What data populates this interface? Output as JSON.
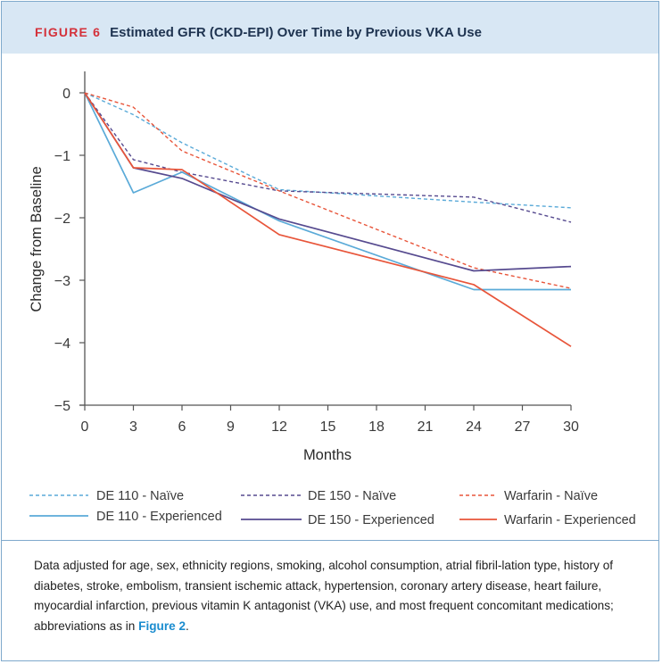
{
  "figure": {
    "label": "FIGURE 6",
    "title": "Estimated GFR (CKD-EPI) Over Time by Previous VKA Use"
  },
  "colors": {
    "de110": "#5aaad8",
    "de150": "#564a8f",
    "warfarin": "#e8553a",
    "frame": "#7fa9cc",
    "header_bg": "#d8e7f4",
    "figure_label": "#d4313a",
    "link": "#1a8ccf"
  },
  "chart_data": {
    "type": "line",
    "xlabel": "Months",
    "ylabel": "Change from Baseline",
    "xlim": [
      0,
      30
    ],
    "ylim": [
      -5,
      0.3
    ],
    "xticks": [
      0,
      3,
      6,
      9,
      12,
      15,
      18,
      21,
      24,
      27,
      30
    ],
    "yticks": [
      0,
      -1,
      -2,
      -3,
      -4,
      -5
    ],
    "ytick_labels": [
      "0",
      "−1",
      "−2",
      "−3",
      "−4",
      "−5"
    ],
    "grid": false,
    "legend_position": "bottom",
    "series": [
      {
        "name": "DE 110 - Naïve",
        "color": "#5aaad8",
        "dashed": true,
        "x": [
          0,
          3,
          6,
          12,
          24,
          30
        ],
        "y": [
          0,
          -0.35,
          -0.8,
          -1.55,
          -1.75,
          -1.84
        ]
      },
      {
        "name": "DE 150 - Naïve",
        "color": "#564a8f",
        "dashed": true,
        "x": [
          0,
          3,
          6,
          12,
          24,
          30
        ],
        "y": [
          0,
          -1.07,
          -1.27,
          -1.57,
          -1.67,
          -2.07
        ]
      },
      {
        "name": "Warfarin - Naïve",
        "color": "#e8553a",
        "dashed": true,
        "x": [
          0,
          3,
          6,
          12,
          24,
          30
        ],
        "y": [
          0,
          -0.23,
          -0.93,
          -1.57,
          -2.8,
          -3.13
        ]
      },
      {
        "name": "DE 110 - Experienced",
        "color": "#5aaad8",
        "dashed": false,
        "x": [
          0,
          3,
          6,
          12,
          24,
          30
        ],
        "y": [
          0,
          -1.6,
          -1.27,
          -2.05,
          -3.15,
          -3.15
        ]
      },
      {
        "name": "DE 150 - Experienced",
        "color": "#564a8f",
        "dashed": false,
        "x": [
          0,
          3,
          6,
          12,
          24,
          30
        ],
        "y": [
          0,
          -1.2,
          -1.37,
          -2.02,
          -2.85,
          -2.78
        ]
      },
      {
        "name": "Warfarin - Experienced",
        "color": "#e8553a",
        "dashed": false,
        "x": [
          0,
          3,
          6,
          12,
          24,
          30
        ],
        "y": [
          0,
          -1.2,
          -1.23,
          -2.27,
          -3.07,
          -4.06
        ]
      }
    ]
  },
  "caption": {
    "text": "Data adjusted for age, sex, ethnicity regions, smoking, alcohol consumption, atrial fibril-lation type, history of diabetes, stroke, embolism, transient ischemic attack, hypertension, coronary artery disease, heart failure, myocardial infarction, previous vitamin K antagonist (VKA) use, and most frequent concomitant medications; abbreviations as in",
    "link": "Figure 2",
    "end": "."
  }
}
